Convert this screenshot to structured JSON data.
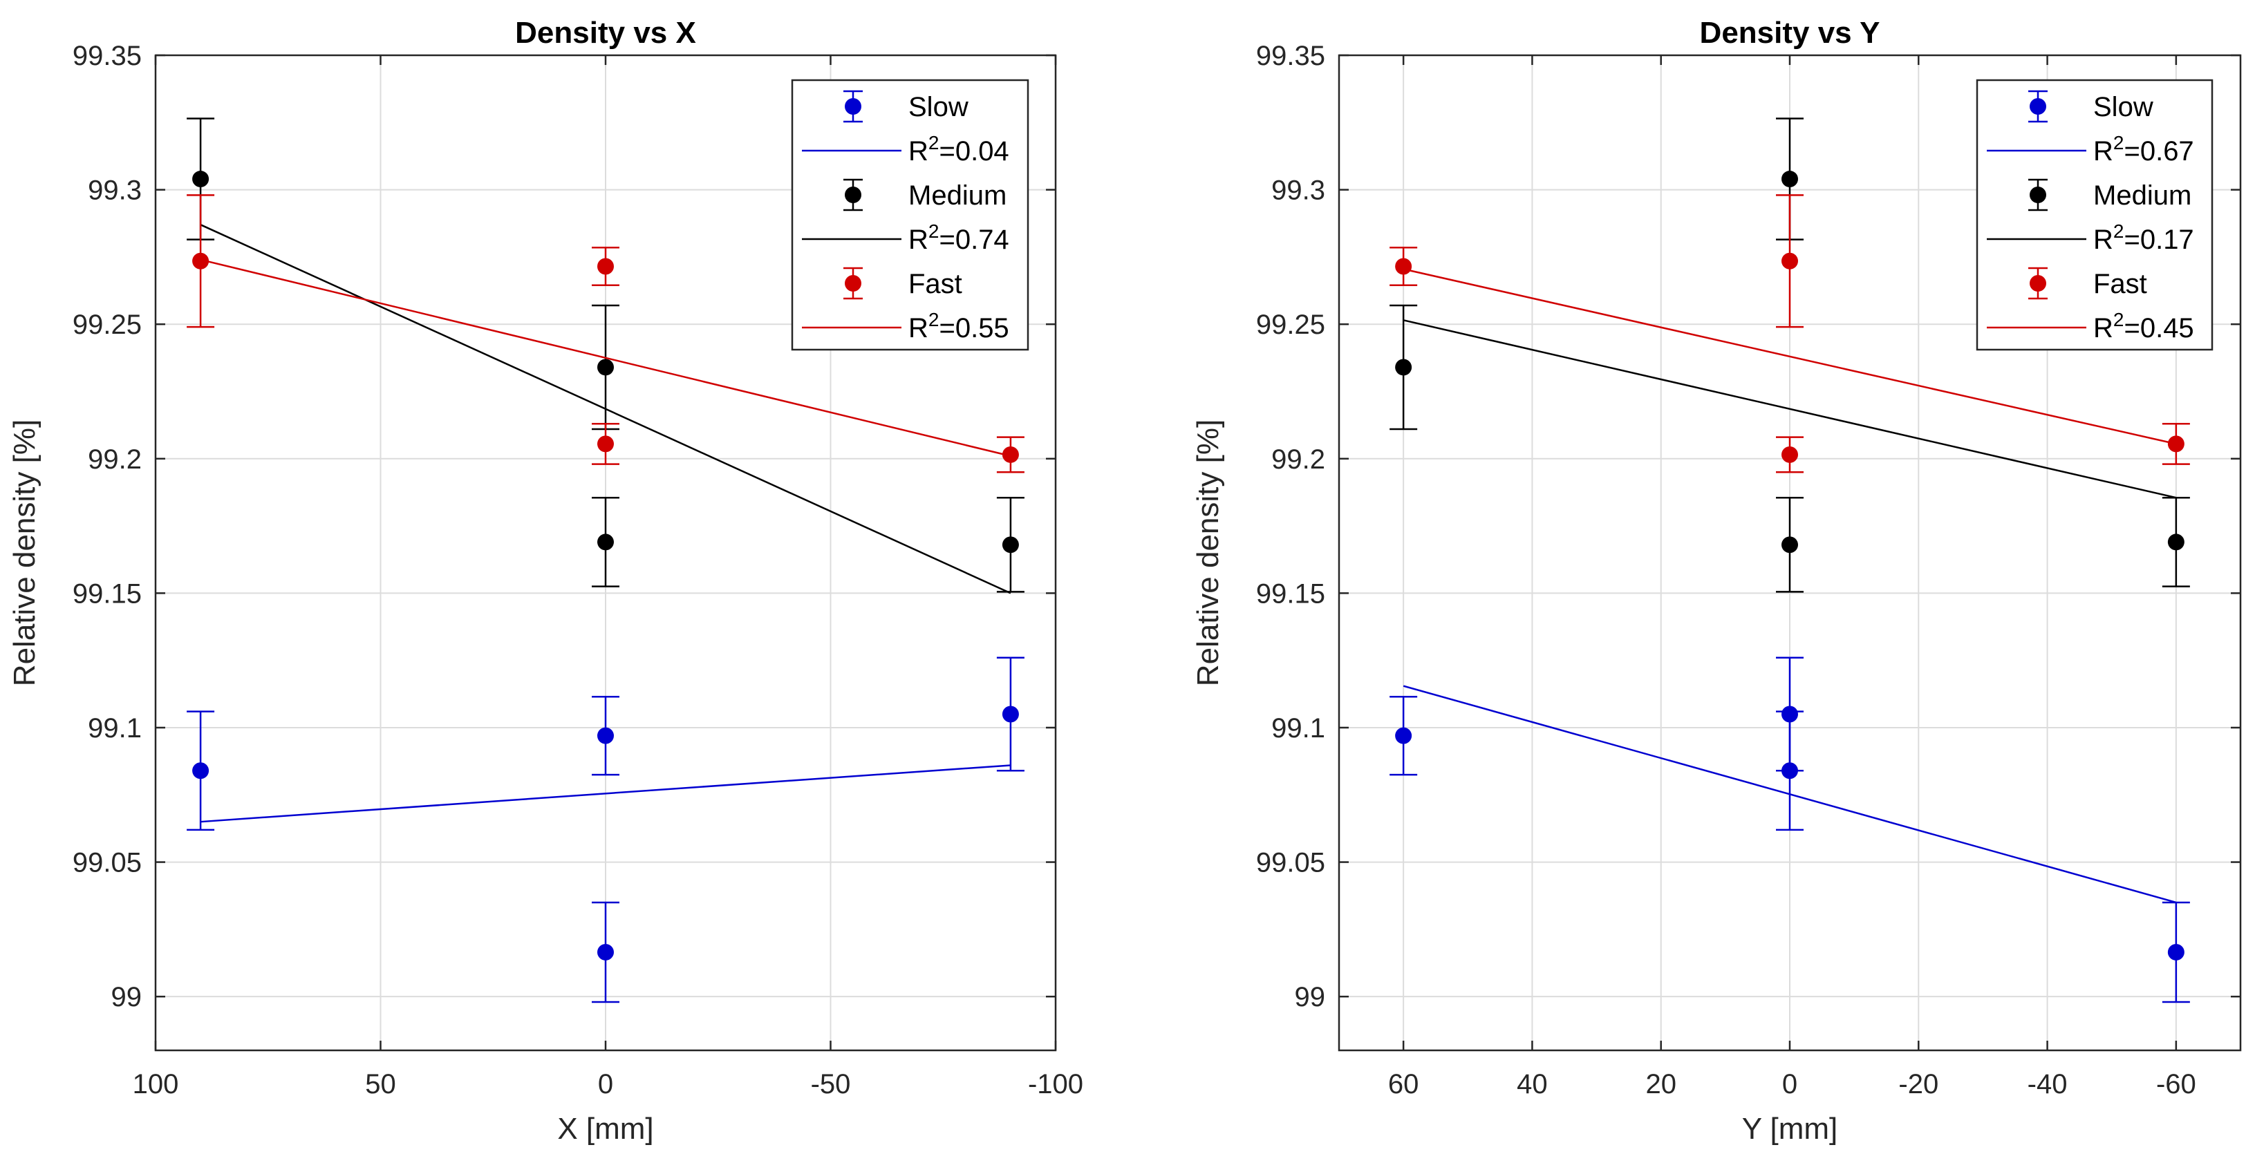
{
  "colors": {
    "Slow": "#0000d0",
    "Medium": "#000000",
    "Fast": "#d00000",
    "axis": "#262626",
    "grid": "#dcdcdc"
  },
  "chart_data": [
    {
      "type": "scatter",
      "title": "Density vs X",
      "xlabel": "X [mm]",
      "ylabel": "Relative density [%]",
      "xlim": [
        100,
        -100
      ],
      "ylim": [
        98.98,
        99.35
      ],
      "xticks": [
        100,
        50,
        0,
        -50,
        -100
      ],
      "xtick_labels": [
        "100",
        "50",
        "0",
        "-50",
        "-100"
      ],
      "yticks": [
        99,
        99.05,
        99.1,
        99.15,
        99.2,
        99.25,
        99.3,
        99.35
      ],
      "ytick_labels": [
        "99",
        "99.05",
        "99.1",
        "99.15",
        "99.2",
        "99.25",
        "99.3",
        "99.35"
      ],
      "grid": true,
      "legend_position": "top-right",
      "series": [
        {
          "name": "Slow",
          "points": [
            {
              "x": 90,
              "y": 99.084,
              "err": 0.022
            },
            {
              "x": 0,
              "y": 99.097,
              "err": 0.0145
            },
            {
              "x": 0,
              "y": 99.0165,
              "err": 0.0185
            },
            {
              "x": -90,
              "y": 99.105,
              "err": 0.021
            }
          ],
          "fit": {
            "x": [
              90,
              -90
            ],
            "y": [
              99.065,
              99.086
            ]
          },
          "r2_prefix": "R",
          "r2_value": "=0.04"
        },
        {
          "name": "Medium",
          "points": [
            {
              "x": 90,
              "y": 99.304,
              "err": 0.0225
            },
            {
              "x": 0,
              "y": 99.234,
              "err": 0.023
            },
            {
              "x": 0,
              "y": 99.169,
              "err": 0.0165
            },
            {
              "x": -90,
              "y": 99.168,
              "err": 0.0175
            }
          ],
          "fit": {
            "x": [
              90,
              -90
            ],
            "y": [
              99.287,
              99.15
            ]
          },
          "r2_prefix": "R",
          "r2_value": "=0.74"
        },
        {
          "name": "Fast",
          "points": [
            {
              "x": 90,
              "y": 99.2735,
              "err": 0.0245
            },
            {
              "x": 0,
              "y": 99.2715,
              "err": 0.007
            },
            {
              "x": 0,
              "y": 99.2055,
              "err": 0.0075
            },
            {
              "x": -90,
              "y": 99.2015,
              "err": 0.0065
            }
          ],
          "fit": {
            "x": [
              90,
              -90
            ],
            "y": [
              99.274,
              99.201
            ]
          },
          "r2_prefix": "R",
          "r2_value": "=0.55"
        }
      ]
    },
    {
      "type": "scatter",
      "title": "Density vs Y",
      "xlabel": "Y [mm]",
      "ylabel": "Relative density [%]",
      "xlim": [
        70,
        -70
      ],
      "ylim": [
        98.98,
        99.35
      ],
      "xticks": [
        60,
        40,
        20,
        0,
        -20,
        -40,
        -60
      ],
      "xtick_labels": [
        "60",
        "40",
        "20",
        "0",
        "-20",
        "-40",
        "-60"
      ],
      "yticks": [
        99,
        99.05,
        99.1,
        99.15,
        99.2,
        99.25,
        99.3,
        99.35
      ],
      "ytick_labels": [
        "99",
        "99.05",
        "99.1",
        "99.15",
        "99.2",
        "99.25",
        "99.3",
        "99.35"
      ],
      "grid": true,
      "legend_position": "top-right",
      "series": [
        {
          "name": "Slow",
          "points": [
            {
              "x": 60,
              "y": 99.097,
              "err": 0.0145
            },
            {
              "x": 0,
              "y": 99.105,
              "err": 0.021
            },
            {
              "x": 0,
              "y": 99.084,
              "err": 0.022
            },
            {
              "x": -60,
              "y": 99.0165,
              "err": 0.0185
            }
          ],
          "fit": {
            "x": [
              60,
              -60
            ],
            "y": [
              99.1155,
              99.035
            ]
          },
          "r2_prefix": "R",
          "r2_value": "=0.67"
        },
        {
          "name": "Medium",
          "points": [
            {
              "x": 60,
              "y": 99.234,
              "err": 0.023
            },
            {
              "x": 0,
              "y": 99.304,
              "err": 0.0225
            },
            {
              "x": 0,
              "y": 99.168,
              "err": 0.0175
            },
            {
              "x": -60,
              "y": 99.169,
              "err": 0.0165
            }
          ],
          "fit": {
            "x": [
              60,
              -60
            ],
            "y": [
              99.2515,
              99.1855
            ]
          },
          "r2_prefix": "R",
          "r2_value": "=0.17"
        },
        {
          "name": "Fast",
          "points": [
            {
              "x": 60,
              "y": 99.2715,
              "err": 0.007
            },
            {
              "x": 0,
              "y": 99.2735,
              "err": 0.0245
            },
            {
              "x": 0,
              "y": 99.2015,
              "err": 0.0065
            },
            {
              "x": -60,
              "y": 99.2055,
              "err": 0.0075
            }
          ],
          "fit": {
            "x": [
              60,
              -60
            ],
            "y": [
              99.2705,
              99.2055
            ]
          },
          "r2_prefix": "R",
          "r2_value": "=0.45"
        }
      ]
    }
  ]
}
